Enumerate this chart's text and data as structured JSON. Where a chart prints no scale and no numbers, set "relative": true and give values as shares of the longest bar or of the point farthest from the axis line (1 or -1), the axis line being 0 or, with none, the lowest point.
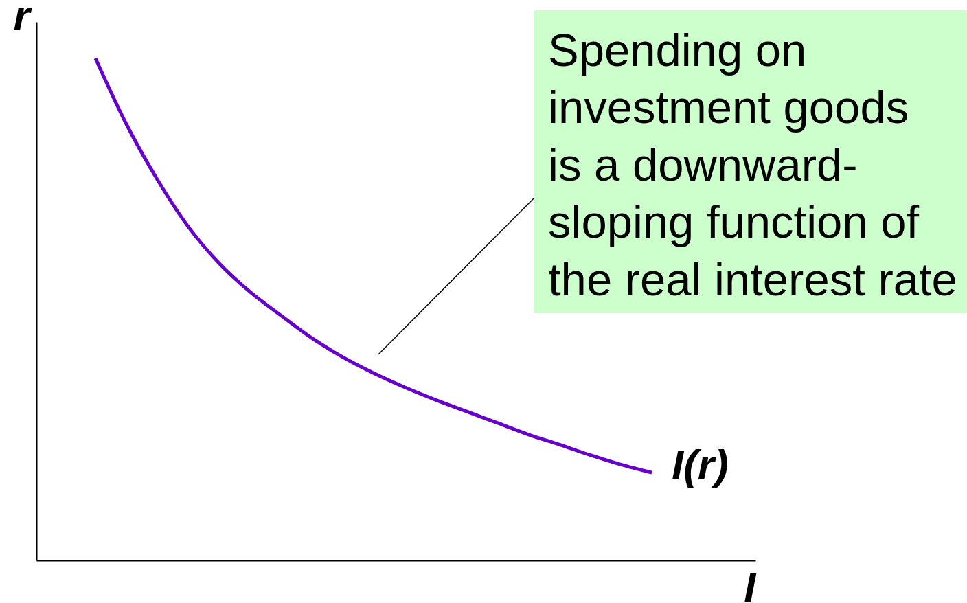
{
  "chart_data": {
    "type": "line",
    "relative": true,
    "xlabel": "I",
    "ylabel": "r",
    "tick_labels": false,
    "annotations": [
      "Spending on\ninvestment goods\nis a downward-\nsloping function of\nthe real interest rate"
    ],
    "categories": [
      null,
      null,
      null,
      null,
      null,
      null,
      null,
      null,
      null,
      null,
      null,
      null,
      null,
      null,
      null,
      null,
      null,
      null,
      null
    ],
    "series": [
      {
        "name": "I(r)",
        "color": "#6600cc",
        "values": [
          1.0,
          0.869,
          0.759,
          0.665,
          0.592,
          0.535,
          0.488,
          0.443,
          0.405,
          0.373,
          0.345,
          0.32,
          0.297,
          0.274,
          0.251,
          0.231,
          0.21,
          0.191,
          0.175
        ]
      }
    ]
  }
}
